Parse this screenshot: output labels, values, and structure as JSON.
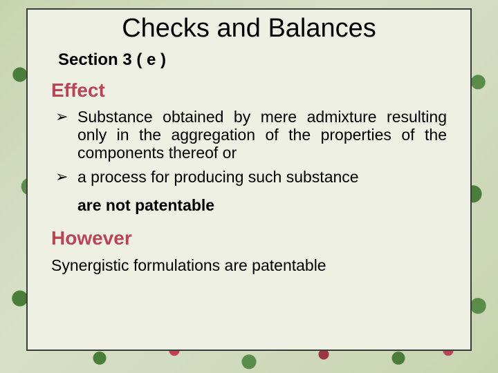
{
  "colors": {
    "panel_bg": "#eef0e4",
    "panel_border": "#3a3a3a",
    "heading_accent": "#b84555",
    "text": "#000000",
    "floral_green_1": "#4a7c3a",
    "floral_green_2": "#5a8c4a",
    "floral_red_1": "#c04050",
    "floral_red_2": "#9a3545",
    "floral_red_3": "#b84555",
    "page_bg": "#d8e0c8"
  },
  "typography": {
    "title_fontsize": 38,
    "subtitle_fontsize": 24,
    "heading_fontsize": 28,
    "body_fontsize": 23,
    "title_family": "Arial",
    "heading_family": "Comic Sans MS"
  },
  "title": "Checks and Balances",
  "subtitle": "Section 3 ( e )",
  "section1": {
    "heading": "Effect",
    "bullets": [
      "Substance obtained by mere admixture resulting only in the aggregation of the properties of the components thereof or",
      "a process for producing such substance"
    ],
    "emphasis": "are not patentable"
  },
  "section2": {
    "heading": "However",
    "body": "Synergistic formulations are patentable"
  }
}
